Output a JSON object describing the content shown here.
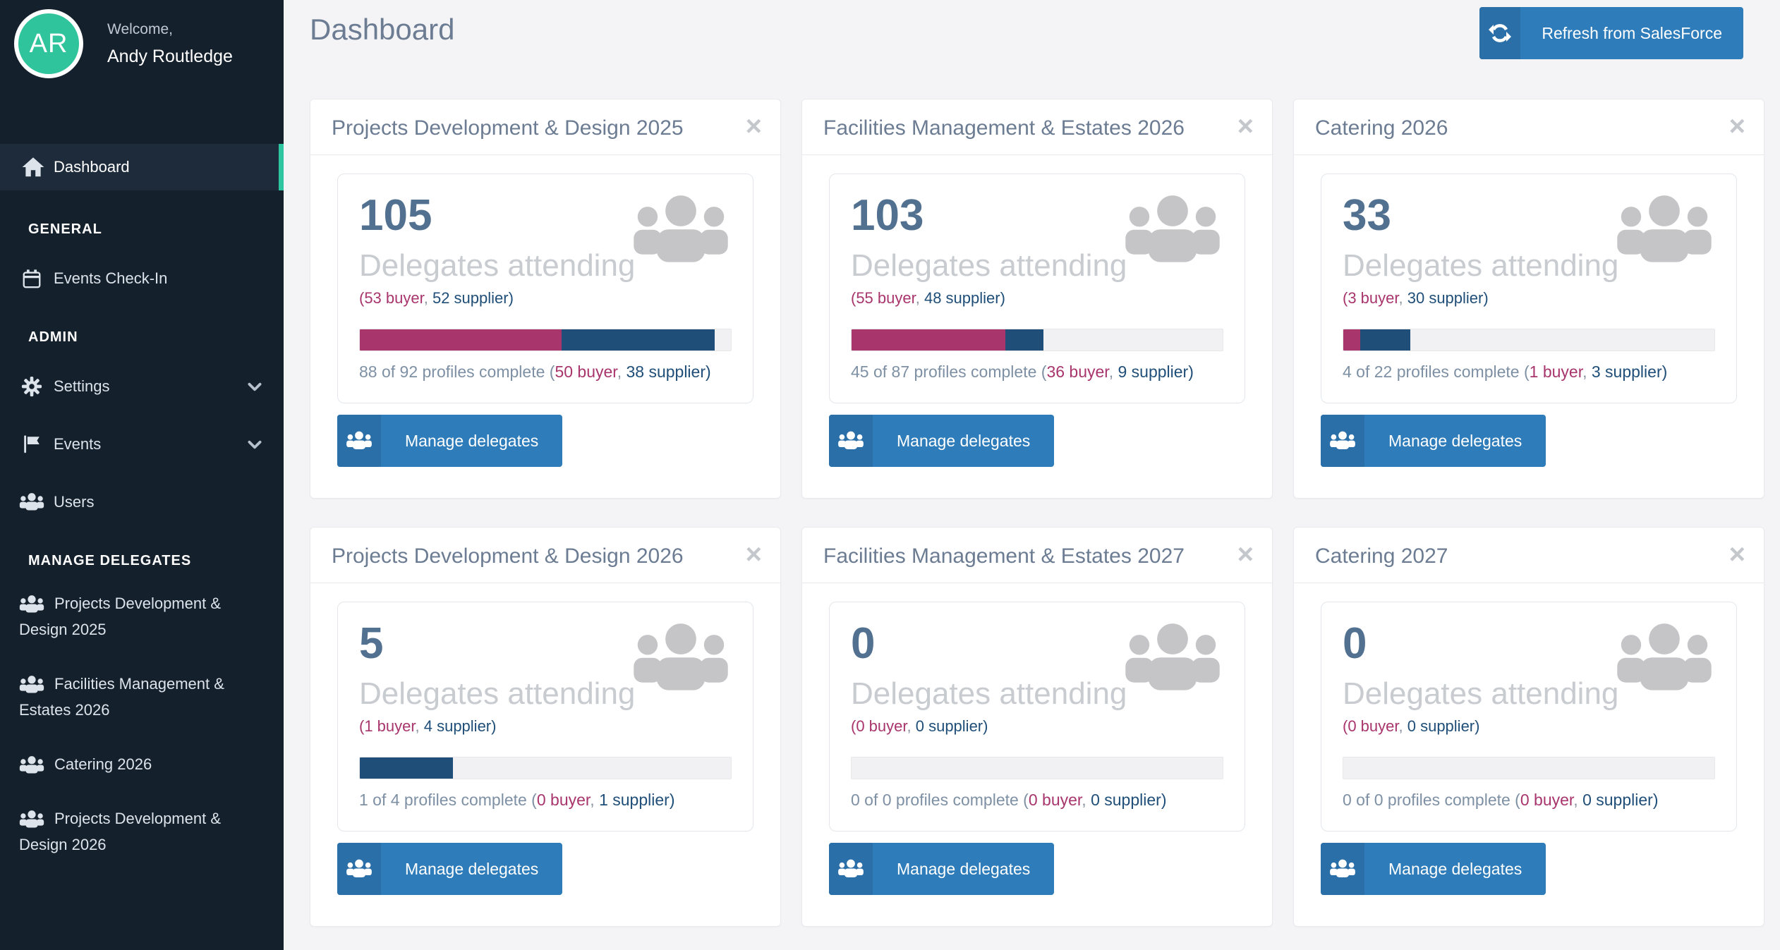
{
  "header": {
    "title": "Dashboard",
    "refresh_label": "Refresh from SalesForce"
  },
  "sidebar": {
    "avatar_initials": "AR",
    "welcome_label": "Welcome,",
    "user_name": "Andy Routledge",
    "dashboard_label": "Dashboard",
    "sections": [
      {
        "title": "GENERAL",
        "items": [
          {
            "label": "Events Check-In",
            "icon": "calendar-icon"
          }
        ]
      },
      {
        "title": "ADMIN",
        "items": [
          {
            "label": "Settings",
            "icon": "gear-icon",
            "chevron": "down"
          },
          {
            "label": "Events",
            "icon": "flag-icon",
            "chevron": "down"
          },
          {
            "label": "Users",
            "icon": "users-icon"
          }
        ]
      },
      {
        "title": "MANAGE DELEGATES",
        "items": [
          {
            "label": "Projects Development & Design 2025",
            "icon": "users-icon"
          },
          {
            "label": "Facilities Management & Estates 2026",
            "icon": "users-icon"
          },
          {
            "label": "Catering 2026",
            "icon": "users-icon"
          },
          {
            "label": "Projects Development & Design 2026",
            "icon": "users-icon"
          }
        ]
      }
    ]
  },
  "icons": {
    "close_glyph": "×"
  },
  "colors": {
    "accent_teal": "#2EC5A1",
    "buyer_crimson": "#A8356C",
    "supplier_navy": "#1F4E78",
    "button_blue": "#2E7CB9",
    "sidebar_bg": "#15202D"
  },
  "cards": [
    {
      "title": "Projects Development & Design 2025",
      "count": "105",
      "attending_label": "Delegates attending",
      "attending_buyer": "(53 buyer",
      "attending_sep": ", ",
      "attending_supplier": "52 supplier)",
      "profiles_prefix": "88 of 92 profiles complete (",
      "profiles_buyer": "50 buyer",
      "profiles_sep": ", ",
      "profiles_supplier": "38 supplier",
      "profiles_suffix": ")",
      "manage_label": "Manage delegates",
      "bar": {
        "buyer_pct": 54.3,
        "supplier_pct": 41.3
      }
    },
    {
      "title": "Facilities Management & Estates 2026",
      "count": "103",
      "attending_label": "Delegates attending",
      "attending_buyer": "(55 buyer",
      "attending_sep": ", ",
      "attending_supplier": "48 supplier)",
      "profiles_prefix": "45 of 87 profiles complete (",
      "profiles_buyer": "36 buyer",
      "profiles_sep": ", ",
      "profiles_supplier": "9 supplier",
      "profiles_suffix": ")",
      "manage_label": "Manage delegates",
      "bar": {
        "buyer_pct": 41.4,
        "supplier_pct": 10.3
      }
    },
    {
      "title": "Catering 2026",
      "count": "33",
      "attending_label": "Delegates attending",
      "attending_buyer": "(3 buyer",
      "attending_sep": ", ",
      "attending_supplier": "30 supplier)",
      "profiles_prefix": "4 of 22 profiles complete (",
      "profiles_buyer": "1 buyer",
      "profiles_sep": ", ",
      "profiles_supplier": "3 supplier",
      "profiles_suffix": ")",
      "manage_label": "Manage delegates",
      "bar": {
        "buyer_pct": 4.5,
        "supplier_pct": 13.6
      }
    },
    {
      "title": "Projects Development & Design 2026",
      "count": "5",
      "attending_label": "Delegates attending",
      "attending_buyer": "(1 buyer",
      "attending_sep": ", ",
      "attending_supplier": "4 supplier)",
      "profiles_prefix": "1 of 4 profiles complete (",
      "profiles_buyer": "0 buyer",
      "profiles_sep": ", ",
      "profiles_supplier": "1 supplier",
      "profiles_suffix": ")",
      "manage_label": "Manage delegates",
      "bar": {
        "buyer_pct": 0,
        "supplier_pct": 25
      }
    },
    {
      "title": "Facilities Management & Estates 2027",
      "count": "0",
      "attending_label": "Delegates attending",
      "attending_buyer": "(0 buyer",
      "attending_sep": ", ",
      "attending_supplier": "0 supplier)",
      "profiles_prefix": "0 of 0 profiles complete (",
      "profiles_buyer": "0 buyer",
      "profiles_sep": ", ",
      "profiles_supplier": "0 supplier",
      "profiles_suffix": ")",
      "manage_label": "Manage delegates",
      "bar": {
        "buyer_pct": 0,
        "supplier_pct": 0
      }
    },
    {
      "title": "Catering 2027",
      "count": "0",
      "attending_label": "Delegates attending",
      "attending_buyer": "(0 buyer",
      "attending_sep": ", ",
      "attending_supplier": "0 supplier)",
      "profiles_prefix": "0 of 0 profiles complete (",
      "profiles_buyer": "0 buyer",
      "profiles_sep": ", ",
      "profiles_supplier": "0 supplier",
      "profiles_suffix": ")",
      "manage_label": "Manage delegates",
      "bar": {
        "buyer_pct": 0,
        "supplier_pct": 0
      }
    }
  ]
}
